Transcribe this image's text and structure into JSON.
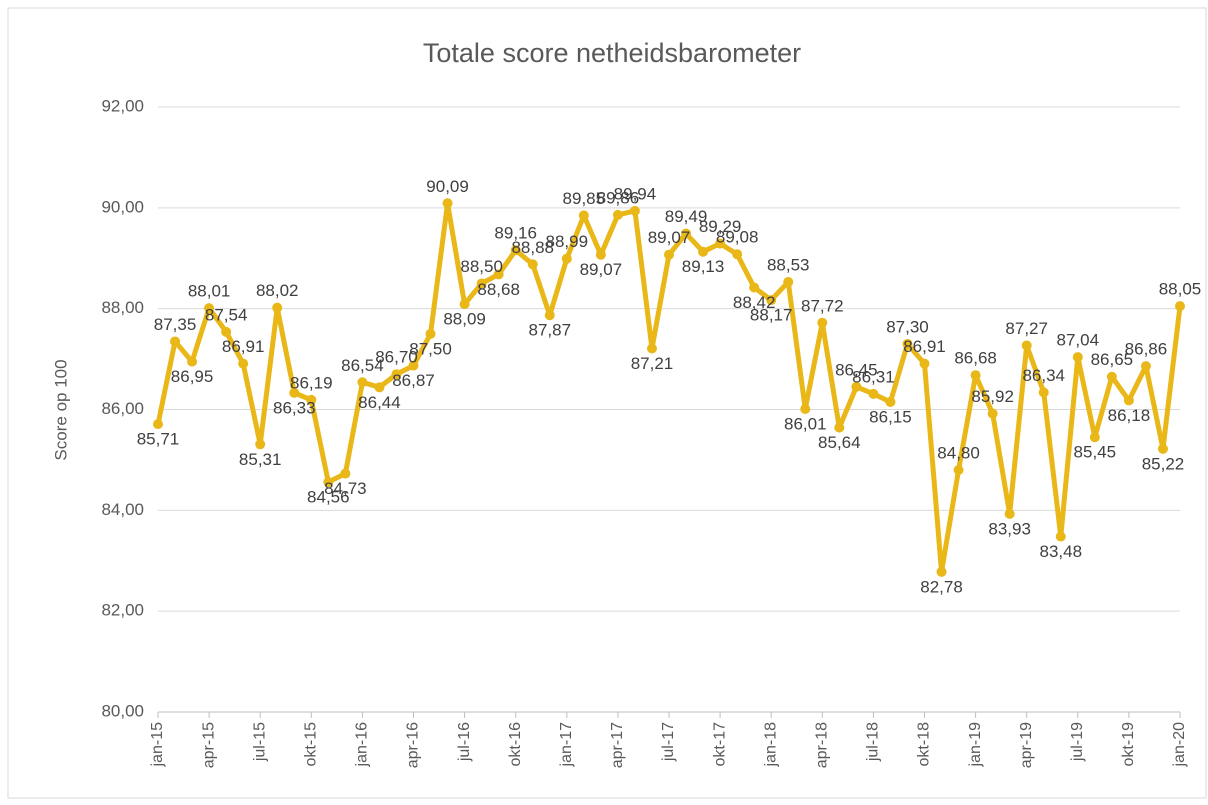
{
  "chart_data": {
    "type": "line",
    "title": "Totale score netheidsbarometer",
    "y_label": "Score op 100",
    "categories": [
      "jan-15",
      null,
      null,
      "apr-15",
      null,
      null,
      "jul-15",
      null,
      null,
      "okt-15",
      null,
      null,
      "jan-16",
      null,
      null,
      "apr-16",
      null,
      null,
      "jul-16",
      null,
      null,
      "okt-16",
      null,
      null,
      "jan-17",
      null,
      null,
      "apr-17",
      null,
      null,
      "jul-17",
      null,
      null,
      "okt-17",
      null,
      null,
      "jan-18",
      null,
      null,
      "apr-18",
      null,
      null,
      "jul-18",
      null,
      null,
      "okt-18",
      null,
      null,
      "jan-19",
      null,
      null,
      "apr-19",
      null,
      null,
      "jul-19",
      null,
      null,
      "okt-19",
      null,
      null,
      "jan-20"
    ],
    "series": [
      {
        "name": "Totale score",
        "color": "#e9b717",
        "values": [
          85.71,
          87.35,
          86.95,
          88.01,
          87.54,
          86.91,
          85.31,
          88.02,
          86.33,
          86.19,
          84.56,
          84.73,
          86.54,
          86.44,
          86.7,
          86.87,
          87.5,
          90.09,
          88.09,
          88.5,
          88.68,
          89.16,
          88.88,
          87.87,
          88.99,
          89.85,
          89.07,
          89.86,
          89.94,
          87.21,
          89.07,
          89.49,
          89.13,
          89.29,
          89.08,
          88.42,
          88.17,
          88.53,
          86.01,
          87.72,
          85.64,
          86.45,
          86.31,
          86.15,
          87.3,
          86.91,
          82.78,
          84.8,
          86.68,
          85.92,
          83.93,
          87.27,
          86.34,
          83.48,
          87.04,
          85.45,
          86.65,
          86.18,
          86.86,
          85.22,
          88.05
        ],
        "value_labels": [
          "85,71",
          "87,35",
          "86,95",
          "88,01",
          "87,54",
          "86,91",
          "85,31",
          "88,02",
          "86,33",
          "86,19",
          "84,56",
          "84,73",
          "86,54",
          "86,44",
          "86,70",
          "86,87",
          "87,50",
          "90,09",
          "88,09",
          "88,50",
          "88,68",
          "89,16",
          "88,88",
          "87,87",
          "88,99",
          "89,85",
          "89,07",
          "89,86",
          "89,94",
          "87,21",
          "89,07",
          "89,49",
          "89,13",
          "89,29",
          "89,08",
          "88,42",
          "88,17",
          "88,53",
          "86,01",
          "87,72",
          "85,64",
          "86,45",
          "86,31",
          "86,15",
          "87,30",
          "86,91",
          "82,78",
          "84,80",
          "86,68",
          "85,92",
          "83,93",
          "87,27",
          "86,34",
          "83,48",
          "87,04",
          "85,45",
          "86,65",
          "86,18",
          "86,86",
          "85,22",
          "88,05"
        ]
      }
    ],
    "ylim": [
      80,
      92
    ],
    "yticks": [
      {
        "value": 80,
        "label": "80,00"
      },
      {
        "value": 82,
        "label": "82,00"
      },
      {
        "value": 84,
        "label": "84,00"
      },
      {
        "value": 86,
        "label": "86,00"
      },
      {
        "value": 88,
        "label": "88,00"
      },
      {
        "value": 90,
        "label": "90,00"
      },
      {
        "value": 92,
        "label": "92,00"
      }
    ],
    "grid": true
  }
}
